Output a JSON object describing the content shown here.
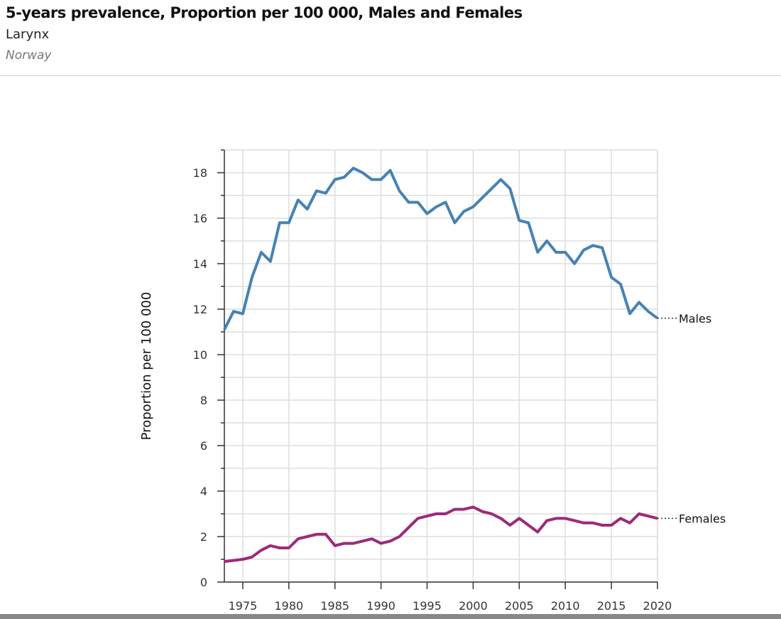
{
  "header": {
    "title": "5-years prevalence, Proportion per 100 000, Males and Females",
    "subtitle": "Larynx",
    "country": "Norway"
  },
  "chart_data": {
    "type": "line",
    "title": "5-years prevalence, Proportion per 100 000, Males and Females",
    "ylabel": "Proportion per 100 000",
    "xlabel": "",
    "xlim": [
      1973,
      2020
    ],
    "ylim": [
      0,
      19
    ],
    "xticks": [
      1975,
      1980,
      1985,
      1990,
      1995,
      2000,
      2005,
      2010,
      2015,
      2020
    ],
    "yticks": [
      0,
      2,
      4,
      6,
      8,
      10,
      12,
      14,
      16,
      18
    ],
    "grid": true,
    "legend": "inline-right",
    "x": [
      1973,
      1974,
      1975,
      1976,
      1977,
      1978,
      1979,
      1980,
      1981,
      1982,
      1983,
      1984,
      1985,
      1986,
      1987,
      1988,
      1989,
      1990,
      1991,
      1992,
      1993,
      1994,
      1995,
      1996,
      1997,
      1998,
      1999,
      2000,
      2001,
      2002,
      2003,
      2004,
      2005,
      2006,
      2007,
      2008,
      2009,
      2010,
      2011,
      2012,
      2013,
      2014,
      2015,
      2016,
      2017,
      2018,
      2019,
      2020
    ],
    "series": [
      {
        "name": "Males",
        "color": "#4682b4",
        "values": [
          11.1,
          11.9,
          11.8,
          13.4,
          14.5,
          14.1,
          15.8,
          15.8,
          16.8,
          16.4,
          17.2,
          17.1,
          17.7,
          17.8,
          18.2,
          18.0,
          17.7,
          17.7,
          18.1,
          17.2,
          16.7,
          16.7,
          16.2,
          16.5,
          16.7,
          15.8,
          16.3,
          16.5,
          16.9,
          17.3,
          17.7,
          17.3,
          15.9,
          15.8,
          14.5,
          15.0,
          14.5,
          14.5,
          14.0,
          14.6,
          14.8,
          14.7,
          13.4,
          13.1,
          11.8,
          12.3,
          11.9,
          11.6
        ]
      },
      {
        "name": "Females",
        "color": "#9c2a7a",
        "values": [
          0.9,
          0.95,
          1.0,
          1.1,
          1.4,
          1.6,
          1.5,
          1.5,
          1.9,
          2.0,
          2.1,
          2.1,
          1.6,
          1.7,
          1.7,
          1.8,
          1.9,
          1.7,
          1.8,
          2.0,
          2.4,
          2.8,
          2.9,
          3.0,
          3.0,
          3.2,
          3.2,
          3.3,
          3.1,
          3.0,
          2.8,
          2.5,
          2.8,
          2.5,
          2.2,
          2.7,
          2.8,
          2.8,
          2.7,
          2.6,
          2.6,
          2.5,
          2.5,
          2.8,
          2.6,
          3.0,
          2.9,
          2.8
        ]
      }
    ]
  }
}
